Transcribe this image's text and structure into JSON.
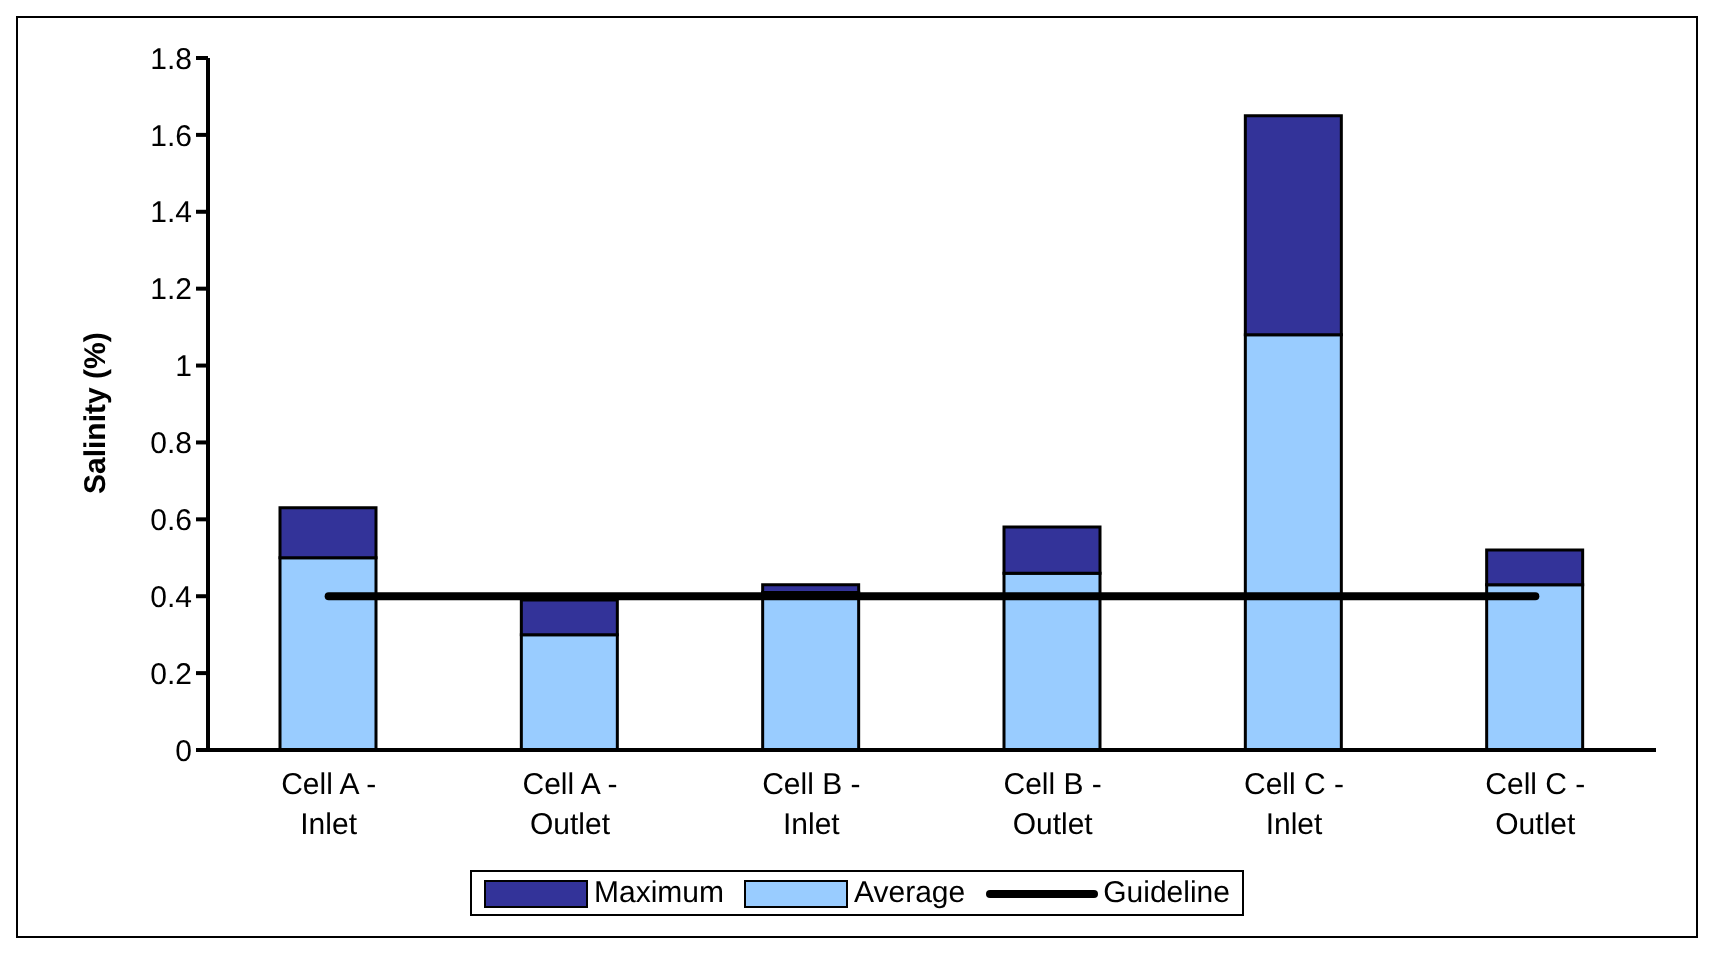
{
  "chart_data": {
    "type": "bar",
    "stacked": true,
    "ylabel": "Salinity (%)",
    "categories": [
      "Cell A - Inlet",
      "Cell A - Outlet",
      "Cell B - Inlet",
      "Cell B - Outlet",
      "Cell C - Inlet",
      "Cell C - Outlet"
    ],
    "series": [
      {
        "name": "Average",
        "color": "#99ccff",
        "values": [
          0.5,
          0.3,
          0.41,
          0.46,
          1.08,
          0.43
        ]
      },
      {
        "name": "Maximum",
        "color": "#333399",
        "values": [
          0.13,
          0.09,
          0.02,
          0.12,
          0.57,
          0.09
        ]
      },
      {
        "name": "Guideline",
        "type": "line",
        "color": "#000000",
        "values": [
          0.4,
          0.4,
          0.4,
          0.4,
          0.4,
          0.4
        ]
      }
    ],
    "ylim": [
      0,
      1.8
    ],
    "yticks": [
      0,
      0.2,
      0.4,
      0.6,
      0.8,
      1,
      1.2,
      1.4,
      1.6,
      1.8
    ],
    "grid": false,
    "legend": "bottom",
    "marker": "none",
    "line_style": "solid"
  }
}
